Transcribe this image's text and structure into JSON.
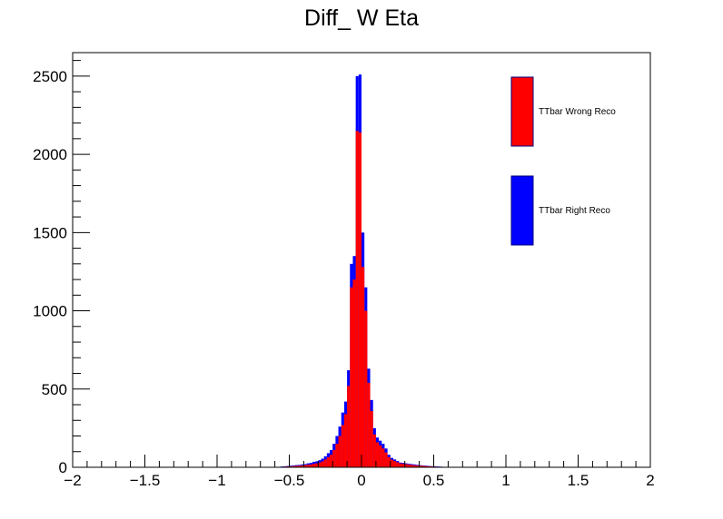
{
  "chart_data": {
    "type": "bar",
    "title": "Diff_ W Eta",
    "xlabel": "",
    "ylabel": "",
    "xlim": [
      -2,
      2
    ],
    "ylim": [
      0,
      2650
    ],
    "grid": false,
    "legend_position": "top-right",
    "x_ticks": [
      -2,
      -1.5,
      -1,
      -0.5,
      0,
      0.5,
      1,
      1.5,
      2
    ],
    "x_tick_labels": [
      "−2",
      "−1.5",
      "−1",
      "−0.5",
      "0",
      "0.5",
      "1",
      "1.5",
      "2"
    ],
    "y_ticks": [
      0,
      500,
      1000,
      1500,
      2000,
      2500
    ],
    "y_tick_labels": [
      "0",
      "500",
      "1000",
      "1500",
      "2000",
      "2500"
    ],
    "bin_width": 0.02,
    "x": [
      -0.55,
      -0.53,
      -0.51,
      -0.49,
      -0.47,
      -0.45,
      -0.43,
      -0.41,
      -0.39,
      -0.37,
      -0.35,
      -0.33,
      -0.31,
      -0.29,
      -0.27,
      -0.25,
      -0.23,
      -0.21,
      -0.19,
      -0.17,
      -0.15,
      -0.13,
      -0.11,
      -0.09,
      -0.07,
      -0.05,
      -0.03,
      -0.01,
      0.01,
      0.03,
      0.05,
      0.07,
      0.09,
      0.11,
      0.13,
      0.15,
      0.17,
      0.19,
      0.21,
      0.23,
      0.25,
      0.27,
      0.29,
      0.31,
      0.33,
      0.35,
      0.37,
      0.39,
      0.41,
      0.43,
      0.45,
      0.47,
      0.49,
      0.51,
      0.53,
      0.55
    ],
    "series": [
      {
        "name": "TTbar Right Reco",
        "color": "#0000ff",
        "values": [
          5,
          6,
          8,
          10,
          12,
          14,
          15,
          18,
          20,
          25,
          28,
          35,
          38,
          45,
          55,
          70,
          90,
          110,
          150,
          200,
          260,
          350,
          420,
          620,
          1300,
          1350,
          2500,
          2510,
          1500,
          1150,
          630,
          430,
          250,
          190,
          170,
          150,
          120,
          80,
          60,
          50,
          40,
          30,
          28,
          25,
          22,
          20,
          18,
          15,
          13,
          11,
          10,
          8,
          7,
          6,
          5,
          4
        ]
      },
      {
        "name": "TTbar Wrong Reco",
        "color": "#ff0000",
        "values": [
          3,
          4,
          5,
          6,
          8,
          9,
          10,
          12,
          14,
          16,
          18,
          22,
          25,
          30,
          38,
          50,
          65,
          80,
          110,
          150,
          200,
          270,
          340,
          520,
          1150,
          1200,
          2150,
          2140,
          1280,
          1000,
          540,
          360,
          210,
          160,
          140,
          120,
          95,
          65,
          48,
          40,
          32,
          25,
          22,
          20,
          17,
          15,
          13,
          11,
          10,
          9,
          7,
          6,
          5,
          4,
          3,
          3
        ]
      }
    ]
  }
}
